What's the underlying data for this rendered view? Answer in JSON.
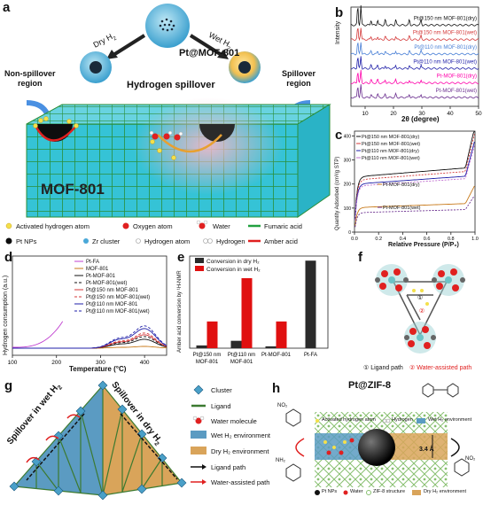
{
  "panel_labels": [
    "a",
    "b",
    "c",
    "d",
    "e",
    "f",
    "g",
    "h"
  ],
  "panel_a": {
    "title": "Pt@MOF-801",
    "dry_label": "Dry H",
    "dry_sub": "2",
    "wet_label": "Wet H",
    "wet_sub": "2",
    "center_label": "Hydrogen spillover",
    "non_spillover": "Non-spillover",
    "non_spillover2": "region",
    "spillover": "Spillover",
    "spillover2": "region",
    "block_label": "MOF-801",
    "legend": [
      {
        "label": "Activated hydrogen atom",
        "icon": "activated-h-dot"
      },
      {
        "label": "Oxygen atom",
        "icon": "oxygen-dot"
      },
      {
        "label": "Water",
        "icon": "water-molecule"
      },
      {
        "label": "Fumaric acid",
        "icon": "green-line"
      },
      {
        "label": "Pt NPs",
        "icon": "black-dot"
      },
      {
        "label": "Zr cluster",
        "icon": "zr-dot"
      },
      {
        "label": "Hydrogen atom",
        "icon": "h-dot"
      },
      {
        "label": "Hydrogen",
        "icon": "h2-molecule"
      },
      {
        "label": "Amber acid",
        "icon": "red-line"
      }
    ]
  },
  "chart_data": [
    {
      "panel": "b",
      "type": "line",
      "xlabel": "2θ (degree)",
      "ylabel": "Intensity",
      "x_ticks": [
        "10",
        "20",
        "30",
        "40",
        "50"
      ],
      "xlim": [
        5,
        50
      ],
      "series": [
        {
          "name": "Pt-MOF-801(wet)",
          "color": "#6b2f8f"
        },
        {
          "name": "Pt-MOF-801(dry)",
          "color": "#ff00aa"
        },
        {
          "name": "Pt@110 nm MOF-801(wet)",
          "color": "#1f1fa8"
        },
        {
          "name": "Pt@110 nm MOF-801(dry)",
          "color": "#4a80d6"
        },
        {
          "name": "Pt@150 nm MOF-801(wet)",
          "color": "#d43a3a"
        },
        {
          "name": "Pt@150 nm MOF-801(dry)",
          "color": "#111111"
        }
      ]
    },
    {
      "panel": "c",
      "type": "line",
      "xlabel": "Relative Pressure (P/P₀)",
      "ylabel": "Quantity Adsorbed (cm³/g STP)",
      "x_ticks": [
        "0.0",
        "0.2",
        "0.4",
        "0.6",
        "0.8",
        "1.0"
      ],
      "y_ticks": [
        "0",
        "100",
        "200",
        "300",
        "400"
      ],
      "xlim": [
        0,
        1
      ],
      "ylim": [
        0,
        420
      ],
      "series": [
        {
          "name": "Pt@150 nm MOF-801(dry)",
          "color": "#111111",
          "plateau": 270
        },
        {
          "name": "Pt@150 nm MOF-801(wet)",
          "color": "#d43a3a",
          "plateau": 255
        },
        {
          "name": "Pt@110 nm MOF-801(dry)",
          "color": "#1f1fa8",
          "plateau": 235
        },
        {
          "name": "Pt@110 nm MOF-801(wet)",
          "color": "#c06fd0",
          "plateau": 225
        },
        {
          "name": "Pt-MOF-801(dry)",
          "color": "#c87a1a",
          "plateau": 120
        },
        {
          "name": "Pt-MOF-801(wet)",
          "color": "#6b2f8f",
          "plateau": 95
        }
      ]
    },
    {
      "panel": "d",
      "type": "line",
      "xlabel": "Temperature (°C)",
      "ylabel": "Hydrogen consumption (a.u.)",
      "x_ticks": [
        "100",
        "200",
        "300",
        "400"
      ],
      "xlim": [
        100,
        450
      ],
      "series": [
        {
          "name": "Pt-FA",
          "color": "#c040d0",
          "dash": ""
        },
        {
          "name": "MOF-801",
          "color": "#c87a1a",
          "dash": ""
        },
        {
          "name": "Pt-MOF-801",
          "color": "#111111",
          "dash": ""
        },
        {
          "name": "Pt-MOF-801(wet)",
          "color": "#111111",
          "dash": "3,2"
        },
        {
          "name": "Pt@150 nm MOF-801",
          "color": "#d43a3a",
          "dash": ""
        },
        {
          "name": "Pt@150 nm MOF-801(wet)",
          "color": "#d43a3a",
          "dash": "3,2"
        },
        {
          "name": "Pt@110 nm MOF-801",
          "color": "#1f1fa8",
          "dash": ""
        },
        {
          "name": "Pt@110 nm MOF-801(wet)",
          "color": "#1f1fa8",
          "dash": "3,2"
        }
      ]
    },
    {
      "panel": "e",
      "type": "bar",
      "ylabel": "Amber acid conversion by ¹H-NMR",
      "categories": [
        "Pt@150 nm MOF-801",
        "Pt@110 nm MOF-801",
        "Pt-MOF-801",
        "Pt-FA"
      ],
      "ylim": [
        0,
        1.0
      ],
      "series": [
        {
          "name": "Conversion in dry H₂",
          "color": "#2b2b2b",
          "values": [
            0.03,
            0.08,
            0.02,
            0.95
          ]
        },
        {
          "name": "Conversion in wet H₂",
          "color": "#e01010",
          "values": [
            0.29,
            0.76,
            0.29,
            null
          ]
        }
      ]
    }
  ],
  "panel_f": {
    "legend1": "① Ligand path",
    "legend2": "② Water-assisted path",
    "mark1": "①",
    "mark2": "②"
  },
  "panel_g": {
    "left_label": "Spillover in wet H",
    "left_sub": "2",
    "right_label": "Spillover in dry H",
    "right_sub": "2",
    "legend": [
      {
        "label": "Cluster",
        "icon": "cluster-icon"
      },
      {
        "label": "Ligand",
        "icon": "ligand-icon"
      },
      {
        "label": "Water molecule",
        "icon": "water-icon"
      },
      {
        "label": "Wet H₂ environment",
        "icon": "wet-env-swatch",
        "color": "#5b9bc2"
      },
      {
        "label": "Dry H₂ environment",
        "icon": "dry-env-swatch",
        "color": "#d9a45a"
      },
      {
        "label": "Ligand path",
        "icon": "ligand-path-arrow"
      },
      {
        "label": "Water-assisted path",
        "icon": "water-path-arrow"
      }
    ]
  },
  "panel_h": {
    "title": "Pt@ZIF-8",
    "legend_top": [
      "Activated hydrogen atom",
      "Hydrogen",
      "Wet H₂ environment"
    ],
    "legend_bottom": [
      "Pt NPs",
      "Water",
      "ZIF-8 structure",
      "Dry H₂ environment"
    ],
    "pore_label": "3.4 Å",
    "no2_left": "NO₂",
    "nh2_left": "NH₂",
    "no2_right": "NO₂"
  }
}
